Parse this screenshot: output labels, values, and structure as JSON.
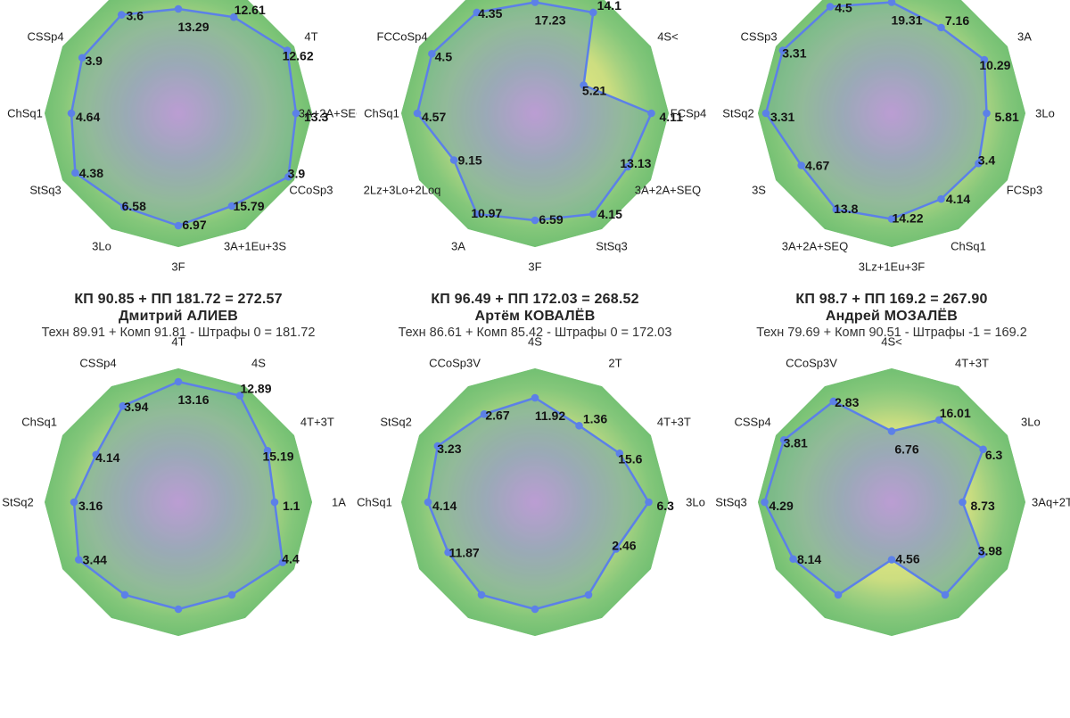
{
  "palette": {
    "background": "#ffffff",
    "line": "#5c80e8",
    "dot": "#5c80e8",
    "polygon_fill": "rgba(125,150,200,0.20)",
    "axis_label_text": "#1d1d1d",
    "value_text": "#141414",
    "header_text": "#242424",
    "center_purple": "#cb9fd6",
    "rim_green": "#73bf72",
    "gap_yellow": "#e3ec7a",
    "base_gradient": [
      [
        "0%",
        "#cb9fd6"
      ],
      [
        "18%",
        "#b7a6c6"
      ],
      [
        "36%",
        "#a3aeb4"
      ],
      [
        "52%",
        "#9db8a1"
      ],
      [
        "68%",
        "#97c48d"
      ],
      [
        "84%",
        "#82c67d"
      ],
      [
        "100%",
        "#73bf72"
      ]
    ],
    "ring_gradient": [
      [
        "0%",
        "#e3ec7a"
      ],
      [
        "45%",
        "#e0ea79"
      ],
      [
        "58%",
        "#d5e37c"
      ],
      [
        "72%",
        "#a8d37f"
      ],
      [
        "86%",
        "#85c77a"
      ],
      [
        "100%",
        "#72c072"
      ]
    ]
  },
  "headers": [
    {
      "score_line": "КП 90.85 + ПП 181.72 = 272.57",
      "name": "Дмитрий АЛИЕВ",
      "breakdown_line": "Техн 89.91 + Комп 91.81 - Штрафы 0 = 181.72"
    },
    {
      "score_line": "КП 96.49 + ПП 172.03 = 268.52",
      "name": "Артём КОВАЛЁВ",
      "breakdown_line": "Техн 86.61 + Комп 85.42 - Штрафы 0 = 172.03"
    },
    {
      "score_line": "КП 98.7 + ПП 169.2 = 267.90",
      "name": "Андрей МОЗАЛЁВ",
      "breakdown_line": "Техн 79.69 + Комп 90.51 - Штрафы -1 = 169.2"
    }
  ],
  "chart_data": [
    {
      "type": "radar",
      "position": "top-left",
      "axes_clockwise_from_top_deg": [
        90,
        60,
        30,
        0,
        -30,
        -60,
        -90,
        -120,
        -150,
        180,
        150,
        120
      ],
      "axes_labels": [
        "",
        "",
        "4T",
        "3A+2A+SEQ",
        "CCoSp3",
        "3A+1Eu+3S",
        "3F",
        "3Lo",
        "StSq3",
        "ChSq1",
        "CSSp4",
        ""
      ],
      "values": [
        "13.29",
        "12.61",
        "12.62",
        "13.3",
        "3.9",
        "15.79",
        "6.97",
        "6.58",
        "4.38",
        "4.64",
        "3.9",
        "3.6"
      ],
      "radius_fractions": [
        0.78,
        0.83,
        0.94,
        0.88,
        0.95,
        0.8,
        0.84,
        0.81,
        0.89,
        0.8,
        0.83,
        0.85
      ]
    },
    {
      "type": "radar",
      "position": "top-middle",
      "axes_clockwise_from_top_deg": [
        90,
        60,
        30,
        0,
        -30,
        -60,
        -90,
        -120,
        -150,
        180,
        150,
        120
      ],
      "axes_labels": [
        "",
        "",
        "4S<",
        "FCSp4",
        "3A+2A+SEQ",
        "StSq3",
        "3F",
        "3A",
        "2Lz+3Lo+2Loq",
        "ChSq1",
        "FCCoSp4",
        ""
      ],
      "values": [
        "17.23",
        "14.1",
        "5.21",
        "4.11",
        "13.13",
        "4.15",
        "6.59",
        "10.97",
        "9.15",
        "4.57",
        "4.5",
        "4.35"
      ],
      "radius_fractions": [
        0.83,
        0.87,
        0.42,
        0.87,
        0.8,
        0.87,
        0.8,
        0.87,
        0.7,
        0.88,
        0.89,
        0.87
      ]
    },
    {
      "type": "radar",
      "position": "top-right",
      "axes_clockwise_from_top_deg": [
        90,
        60,
        30,
        0,
        -30,
        -60,
        -90,
        -120,
        -150,
        180,
        150,
        120
      ],
      "axes_labels": [
        "",
        "",
        "3A",
        "3Lo",
        "FCSp3",
        "ChSq1",
        "3Lz+1Eu+3F",
        "3A+2A+SEQ",
        "3S",
        "StSq2",
        "CSSp3",
        ""
      ],
      "values": [
        "19.31",
        "7.16",
        "10.29",
        "5.81",
        "3.4",
        "4.14",
        "14.22",
        "13.8",
        "4.67",
        "3.31",
        "3.31",
        "4.5"
      ],
      "radius_fractions": [
        0.83,
        0.74,
        0.8,
        0.71,
        0.75,
        0.74,
        0.79,
        0.83,
        0.78,
        0.94,
        0.94,
        0.92
      ]
    },
    {
      "type": "radar",
      "position": "bottom-left",
      "axes_clockwise_from_top_deg": [
        90,
        60,
        30,
        0,
        -30,
        -60,
        -90,
        -120,
        -150,
        180,
        150,
        120
      ],
      "axes_labels": [
        "4T",
        "4S",
        "4T+3T",
        "1A",
        "",
        "",
        "",
        "",
        "",
        "StSq2",
        "ChSq1",
        "CSSp4"
      ],
      "values": [
        "13.16",
        "12.89",
        "15.19",
        "1.1",
        "4.4",
        "",
        "",
        "",
        "3.44",
        "3.16",
        "4.14",
        "3.94"
      ],
      "radius_fractions": [
        0.9,
        0.92,
        0.77,
        0.72,
        0.9,
        0.8,
        0.8,
        0.8,
        0.86,
        0.78,
        0.71,
        0.83
      ]
    },
    {
      "type": "radar",
      "position": "bottom-middle",
      "axes_clockwise_from_top_deg": [
        90,
        60,
        30,
        0,
        -30,
        -60,
        -90,
        -120,
        -150,
        180,
        150,
        120
      ],
      "axes_labels": [
        "4S",
        "2T",
        "4T+3T",
        "3Lo",
        "",
        "",
        "",
        "",
        "",
        "ChSq1",
        "StSq2",
        "CCoSp3V"
      ],
      "values": [
        "11.92",
        "1.36",
        "15.6",
        "6.3",
        "2.46",
        "",
        "",
        "",
        "11.87",
        "4.14",
        "3.23",
        "2.67"
      ],
      "radius_fractions": [
        0.78,
        0.66,
        0.73,
        0.85,
        0.7,
        0.8,
        0.8,
        0.8,
        0.75,
        0.8,
        0.84,
        0.76
      ]
    },
    {
      "type": "radar",
      "position": "bottom-right",
      "axes_clockwise_from_top_deg": [
        90,
        60,
        30,
        0,
        -30,
        -60,
        -90,
        -120,
        -150,
        180,
        150,
        120
      ],
      "axes_labels": [
        "4S<",
        "4T+3T",
        "3Lo",
        "3Aq+2T",
        "",
        "",
        "",
        "",
        "",
        "StSq3",
        "CSSp4",
        "CCoSp3V"
      ],
      "values": [
        "6.76",
        "16.01",
        "6.3",
        "8.73",
        "3.98",
        "",
        "4.56",
        "",
        "8.14",
        "4.29",
        "3.81",
        "2.83"
      ],
      "radius_fractions": [
        0.53,
        0.71,
        0.79,
        0.53,
        0.78,
        0.8,
        0.43,
        0.8,
        0.85,
        0.95,
        0.93,
        0.87
      ]
    }
  ]
}
